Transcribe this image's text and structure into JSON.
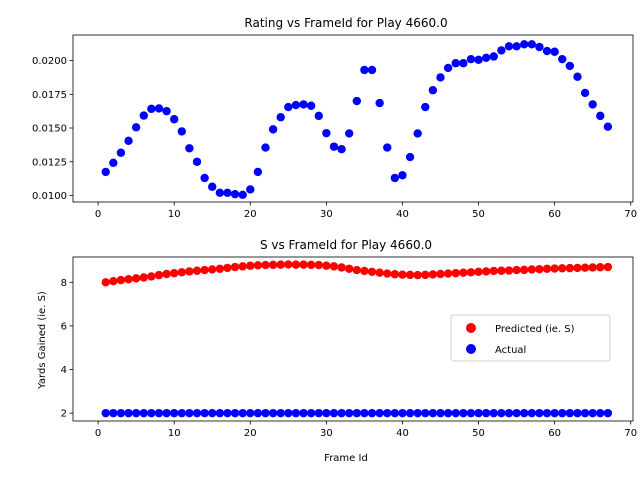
{
  "chart_data": [
    {
      "type": "scatter",
      "title": "Rating vs FrameId for Play 4660.0",
      "xlabel": "",
      "ylabel": "",
      "xlim": [
        -3.3,
        70.3
      ],
      "ylim": [
        0.00952,
        0.02189
      ],
      "xticks": [
        "0",
        "10",
        "20",
        "30",
        "40",
        "50",
        "60",
        "70"
      ],
      "yticks": [
        "0.0100",
        "0.0125",
        "0.0150",
        "0.0175",
        "0.0200"
      ],
      "grid": false,
      "color": "#0000ff",
      "series": [
        {
          "name": "",
          "x": [
            1,
            2,
            3,
            4,
            5,
            6,
            7,
            8,
            9,
            10,
            11,
            12,
            13,
            14,
            15,
            16,
            17,
            18,
            19,
            20,
            21,
            22,
            23,
            24,
            25,
            26,
            27,
            28,
            29,
            30,
            31,
            32,
            33,
            34,
            35,
            36,
            37,
            38,
            39,
            40,
            41,
            42,
            43,
            44,
            45,
            46,
            47,
            48,
            49,
            50,
            51,
            52,
            53,
            54,
            55,
            56,
            57,
            58,
            59,
            60,
            61,
            62,
            63,
            64,
            65,
            66,
            67
          ],
          "y": [
            0.01175,
            0.01242,
            0.01317,
            0.01405,
            0.01505,
            0.01592,
            0.01642,
            0.01645,
            0.01625,
            0.01565,
            0.01475,
            0.0135,
            0.0125,
            0.0113,
            0.01065,
            0.0102,
            0.0102,
            0.0101,
            0.01005,
            0.01045,
            0.01175,
            0.01355,
            0.0149,
            0.0158,
            0.01655,
            0.0167,
            0.01675,
            0.01665,
            0.0159,
            0.01462,
            0.01362,
            0.01343,
            0.0146,
            0.017,
            0.0193,
            0.0193,
            0.01685,
            0.01355,
            0.0113,
            0.0115,
            0.01285,
            0.0146,
            0.01655,
            0.0178,
            0.01875,
            0.01945,
            0.0198,
            0.0198,
            0.0201,
            0.02005,
            0.0202,
            0.0203,
            0.02075,
            0.02105,
            0.02105,
            0.0212,
            0.0212,
            0.021,
            0.0207,
            0.02065,
            0.0201,
            0.0196,
            0.0188,
            0.0176,
            0.01675,
            0.0159,
            0.0151
          ]
        }
      ]
    },
    {
      "type": "scatter",
      "title": "S vs FrameId for Play 4660.0",
      "xlabel": "Frame Id",
      "ylabel": "Yards Gained (ie. S)",
      "xlim": [
        -3.3,
        70.3
      ],
      "ylim": [
        1.64,
        9.16
      ],
      "xticks": [
        "0",
        "10",
        "20",
        "30",
        "40",
        "50",
        "60",
        "70"
      ],
      "yticks": [
        "2",
        "4",
        "6",
        "8"
      ],
      "grid": false,
      "legend_position": "center-right",
      "series": [
        {
          "name": "Predicted (ie. S)",
          "color": "#ff0000",
          "x": [
            1,
            2,
            3,
            4,
            5,
            6,
            7,
            8,
            9,
            10,
            11,
            12,
            13,
            14,
            15,
            16,
            17,
            18,
            19,
            20,
            21,
            22,
            23,
            24,
            25,
            26,
            27,
            28,
            29,
            30,
            31,
            32,
            33,
            34,
            35,
            36,
            37,
            38,
            39,
            40,
            41,
            42,
            43,
            44,
            45,
            46,
            47,
            48,
            49,
            50,
            51,
            52,
            53,
            54,
            55,
            56,
            57,
            58,
            59,
            60,
            61,
            62,
            63,
            64,
            65,
            66,
            67
          ],
          "y": [
            8.0,
            8.05,
            8.1,
            8.14,
            8.18,
            8.22,
            8.27,
            8.33,
            8.38,
            8.42,
            8.46,
            8.5,
            8.53,
            8.56,
            8.59,
            8.62,
            8.66,
            8.7,
            8.73,
            8.76,
            8.78,
            8.79,
            8.8,
            8.81,
            8.82,
            8.81,
            8.81,
            8.8,
            8.79,
            8.76,
            8.73,
            8.68,
            8.62,
            8.56,
            8.52,
            8.48,
            8.44,
            8.4,
            8.37,
            8.35,
            8.34,
            8.33,
            8.34,
            8.36,
            8.38,
            8.4,
            8.42,
            8.44,
            8.46,
            8.48,
            8.5,
            8.52,
            8.53,
            8.54,
            8.56,
            8.57,
            8.59,
            8.6,
            8.62,
            8.63,
            8.64,
            8.65,
            8.66,
            8.67,
            8.68,
            8.69,
            8.7
          ]
        },
        {
          "name": "Actual",
          "color": "#0000ff",
          "x": [
            1,
            2,
            3,
            4,
            5,
            6,
            7,
            8,
            9,
            10,
            11,
            12,
            13,
            14,
            15,
            16,
            17,
            18,
            19,
            20,
            21,
            22,
            23,
            24,
            25,
            26,
            27,
            28,
            29,
            30,
            31,
            32,
            33,
            34,
            35,
            36,
            37,
            38,
            39,
            40,
            41,
            42,
            43,
            44,
            45,
            46,
            47,
            48,
            49,
            50,
            51,
            52,
            53,
            54,
            55,
            56,
            57,
            58,
            59,
            60,
            61,
            62,
            63,
            64,
            65,
            66,
            67
          ],
          "y": [
            2,
            2,
            2,
            2,
            2,
            2,
            2,
            2,
            2,
            2,
            2,
            2,
            2,
            2,
            2,
            2,
            2,
            2,
            2,
            2,
            2,
            2,
            2,
            2,
            2,
            2,
            2,
            2,
            2,
            2,
            2,
            2,
            2,
            2,
            2,
            2,
            2,
            2,
            2,
            2,
            2,
            2,
            2,
            2,
            2,
            2,
            2,
            2,
            2,
            2,
            2,
            2,
            2,
            2,
            2,
            2,
            2,
            2,
            2,
            2,
            2,
            2,
            2,
            2,
            2,
            2,
            2
          ]
        }
      ]
    }
  ]
}
